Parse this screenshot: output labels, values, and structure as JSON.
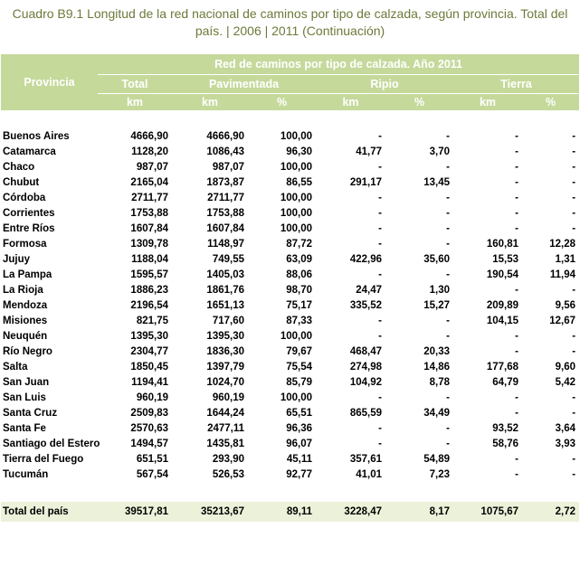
{
  "title": "Cuadro B9.1 Longitud de la red nacional de caminos por tipo de calzada, según provincia. Total del país. | 2006 | 2011 (Continuación)",
  "header": {
    "provincia": "Provincia",
    "group": "Red de caminos por tipo de calzada. Año 2011",
    "total": "Total",
    "pavimentada": "Pavimentada",
    "ripio": "Ripio",
    "tierra": "Tierra",
    "units": [
      "km",
      "km",
      "%",
      "km",
      "%",
      "km",
      "%"
    ]
  },
  "rows": [
    [
      "Buenos Aires",
      "4666,90",
      "4666,90",
      "100,00",
      "-",
      "-",
      "-",
      "-"
    ],
    [
      "Catamarca",
      "1128,20",
      "1086,43",
      "96,30",
      "41,77",
      "3,70",
      "-",
      "-"
    ],
    [
      "Chaco",
      "987,07",
      "987,07",
      "100,00",
      "-",
      "-",
      "-",
      "-"
    ],
    [
      "Chubut",
      "2165,04",
      "1873,87",
      "86,55",
      "291,17",
      "13,45",
      "-",
      "-"
    ],
    [
      "Córdoba",
      "2711,77",
      "2711,77",
      "100,00",
      "-",
      "-",
      "-",
      "-"
    ],
    [
      "Corrientes",
      "1753,88",
      "1753,88",
      "100,00",
      "-",
      "-",
      "-",
      "-"
    ],
    [
      "Entre Ríos",
      "1607,84",
      "1607,84",
      "100,00",
      "-",
      "-",
      "-",
      "-"
    ],
    [
      "Formosa",
      "1309,78",
      "1148,97",
      "87,72",
      "-",
      "-",
      "160,81",
      "12,28"
    ],
    [
      "Jujuy",
      "1188,04",
      "749,55",
      "63,09",
      "422,96",
      "35,60",
      "15,53",
      "1,31"
    ],
    [
      "La Pampa",
      "1595,57",
      "1405,03",
      "88,06",
      "-",
      "-",
      "190,54",
      "11,94"
    ],
    [
      "La Rioja",
      "1886,23",
      "1861,76",
      "98,70",
      "24,47",
      "1,30",
      "-",
      "-"
    ],
    [
      "Mendoza",
      "2196,54",
      "1651,13",
      "75,17",
      "335,52",
      "15,27",
      "209,89",
      "9,56"
    ],
    [
      "Misiones",
      "821,75",
      "717,60",
      "87,33",
      "-",
      "-",
      "104,15",
      "12,67"
    ],
    [
      "Neuquén",
      "1395,30",
      "1395,30",
      "100,00",
      "-",
      "-",
      "-",
      "-"
    ],
    [
      "Río Negro",
      "2304,77",
      "1836,30",
      "79,67",
      "468,47",
      "20,33",
      "-",
      "-"
    ],
    [
      "Salta",
      "1850,45",
      "1397,79",
      "75,54",
      "274,98",
      "14,86",
      "177,68",
      "9,60"
    ],
    [
      "San Juan",
      "1194,41",
      "1024,70",
      "85,79",
      "104,92",
      "8,78",
      "64,79",
      "5,42"
    ],
    [
      "San Luis",
      "960,19",
      "960,19",
      "100,00",
      "-",
      "-",
      "-",
      "-"
    ],
    [
      "Santa Cruz",
      "2509,83",
      "1644,24",
      "65,51",
      "865,59",
      "34,49",
      "-",
      "-"
    ],
    [
      "Santa Fe",
      "2570,63",
      "2477,11",
      "96,36",
      "-",
      "-",
      "93,52",
      "3,64"
    ],
    [
      "Santiago del Estero",
      "1494,57",
      "1435,81",
      "96,07",
      "-",
      "-",
      "58,76",
      "3,93"
    ],
    [
      "Tierra del Fuego",
      "651,51",
      "293,90",
      "45,11",
      "357,61",
      "54,89",
      "-",
      "-"
    ],
    [
      "Tucumán",
      "567,54",
      "526,53",
      "92,77",
      "41,01",
      "7,23",
      "-",
      "-"
    ]
  ],
  "total": [
    "Total del país",
    "39517,81",
    "35213,67",
    "89,11",
    "3228,47",
    "8,17",
    "1075,67",
    "2,72"
  ],
  "colors": {
    "header_bg": "#c5d99b",
    "title": "#6b7a3a",
    "total_bg": "#ecf2da"
  }
}
